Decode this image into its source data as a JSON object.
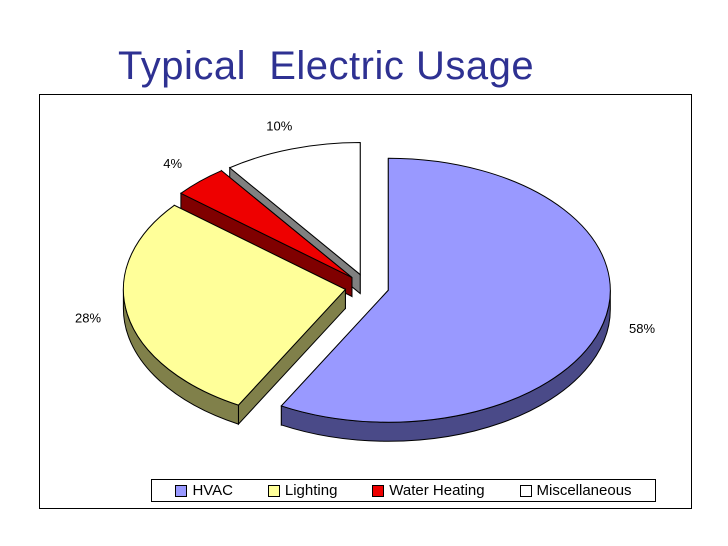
{
  "slide": {
    "title": "Typical  Electric Usage"
  },
  "chart_data": {
    "type": "pie",
    "title": "Typical  Electric Usage",
    "categories": [
      "HVAC",
      "Lighting",
      "Water Heating",
      "Miscellaneous"
    ],
    "values": [
      58,
      28,
      4,
      10
    ],
    "data_labels": [
      "58%",
      "28%",
      "4%",
      "10%"
    ],
    "colors": [
      "#9999ff",
      "#ffff99",
      "#ee0000",
      "#ffffff"
    ],
    "side_colors": [
      "#4a4a88",
      "#80804a",
      "#800000",
      "#808080"
    ],
    "legend_position": "bottom",
    "style": "3d-exploded"
  },
  "legend": {
    "items": [
      "HVAC",
      "Lighting",
      "Water Heating",
      "Miscellaneous"
    ]
  }
}
